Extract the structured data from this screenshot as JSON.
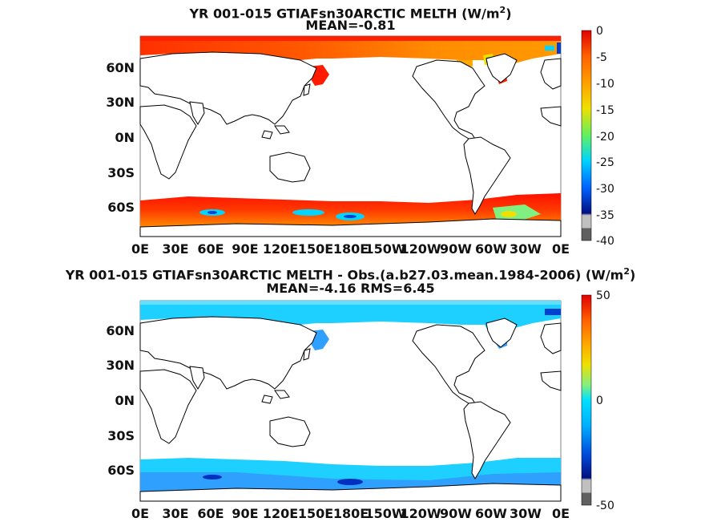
{
  "panels": [
    {
      "title_line1": "YR 001-015 GTIAFsn30ARCTIC  MELTH (W/m",
      "title_sup": "2",
      "title_close": ")",
      "title_line2": "MEAN=-0.81",
      "colorbar_ticks": [
        "0",
        "-5",
        "-10",
        "-15",
        "-20",
        "-25",
        "-30",
        "-35",
        "-40"
      ],
      "colorbar_range": [
        -40,
        0
      ]
    },
    {
      "title_line1": "YR 001-015 GTIAFsn30ARCTIC MELTH - Obs.(a.b27.03.mean.1984-2006) (W/m",
      "title_sup": "2",
      "title_close": ")",
      "title_line2": "MEAN=-4.16 RMS=6.45",
      "colorbar_ticks": [
        "50",
        "0",
        "-50"
      ],
      "colorbar_range": [
        -50,
        50
      ]
    }
  ],
  "lat_labels": [
    "60N",
    "30N",
    "0N",
    "30S",
    "60S"
  ],
  "lon_labels": [
    "0E",
    "30E",
    "60E",
    "90E",
    "120E",
    "150E",
    "180E",
    "150W",
    "120W",
    "90W",
    "60W",
    "30W",
    "0E"
  ],
  "colors": {
    "high": "#e00000",
    "orange": "#ff8800",
    "yellow": "#f0e000",
    "cyan": "#00d4ff",
    "blue": "#0040d0",
    "navy": "#001080",
    "gray": "#808080",
    "land": "#ffffff"
  }
}
